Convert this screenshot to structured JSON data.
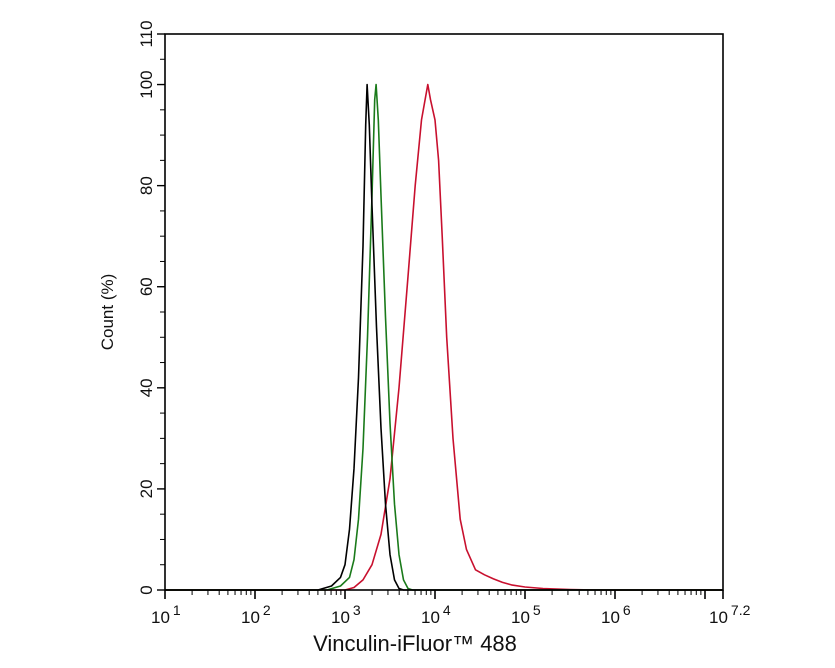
{
  "chart_data": {
    "type": "line",
    "title": "",
    "xlabel": "Vinculin-iFluor™ 488",
    "ylabel": "Count  (%)",
    "xscale": "log",
    "xlim_log10": [
      1,
      7.2
    ],
    "ylim": [
      0,
      110
    ],
    "grid": false,
    "legend": "none",
    "x_tick_labels": [
      {
        "base": "10",
        "exp": "1",
        "log10": 1
      },
      {
        "base": "10",
        "exp": "2",
        "log10": 2
      },
      {
        "base": "10",
        "exp": "3",
        "log10": 3
      },
      {
        "base": "10",
        "exp": "4",
        "log10": 4
      },
      {
        "base": "10",
        "exp": "5",
        "log10": 5
      },
      {
        "base": "10",
        "exp": "6",
        "log10": 6
      },
      {
        "base": "10",
        "exp": "7.2",
        "log10": 7.2
      }
    ],
    "y_tick_labels": [
      "0",
      "20",
      "40",
      "60",
      "80",
      "100",
      "110"
    ],
    "y_ticks": [
      0,
      20,
      40,
      60,
      80,
      100,
      110
    ],
    "series": [
      {
        "name": "black",
        "color": "#000000",
        "peak_x": 1700,
        "points_log10": [
          [
            2.7,
            0
          ],
          [
            2.85,
            0.8
          ],
          [
            2.95,
            2.5
          ],
          [
            3.0,
            5
          ],
          [
            3.05,
            12
          ],
          [
            3.1,
            24
          ],
          [
            3.15,
            42
          ],
          [
            3.2,
            68
          ],
          [
            3.23,
            92
          ],
          [
            3.245,
            100
          ],
          [
            3.27,
            92
          ],
          [
            3.3,
            76
          ],
          [
            3.35,
            52
          ],
          [
            3.4,
            32
          ],
          [
            3.45,
            17
          ],
          [
            3.5,
            7
          ],
          [
            3.55,
            2
          ],
          [
            3.6,
            0.3
          ],
          [
            3.65,
            0
          ]
        ]
      },
      {
        "name": "green",
        "color": "#1a7a1a",
        "peak_x": 2150,
        "points_log10": [
          [
            2.8,
            0
          ],
          [
            2.95,
            0.8
          ],
          [
            3.05,
            2.5
          ],
          [
            3.1,
            6
          ],
          [
            3.15,
            14
          ],
          [
            3.2,
            28
          ],
          [
            3.25,
            50
          ],
          [
            3.3,
            78
          ],
          [
            3.33,
            97
          ],
          [
            3.345,
            100
          ],
          [
            3.37,
            93
          ],
          [
            3.4,
            78
          ],
          [
            3.45,
            54
          ],
          [
            3.5,
            33
          ],
          [
            3.55,
            17
          ],
          [
            3.6,
            7
          ],
          [
            3.65,
            2
          ],
          [
            3.7,
            0.3
          ],
          [
            3.75,
            0
          ]
        ]
      },
      {
        "name": "red",
        "color": "#c8102e",
        "peak_x": 8300,
        "points_log10": [
          [
            3.0,
            0
          ],
          [
            3.1,
            0.5
          ],
          [
            3.2,
            2
          ],
          [
            3.3,
            5
          ],
          [
            3.4,
            11
          ],
          [
            3.5,
            22
          ],
          [
            3.6,
            40
          ],
          [
            3.7,
            62
          ],
          [
            3.78,
            80
          ],
          [
            3.85,
            93
          ],
          [
            3.92,
            100
          ],
          [
            3.95,
            97
          ],
          [
            4.0,
            93
          ],
          [
            4.04,
            85
          ],
          [
            4.08,
            70
          ],
          [
            4.13,
            50
          ],
          [
            4.2,
            30
          ],
          [
            4.28,
            14
          ],
          [
            4.35,
            8
          ],
          [
            4.45,
            4
          ],
          [
            4.55,
            3
          ],
          [
            4.65,
            2.2
          ],
          [
            4.75,
            1.5
          ],
          [
            4.85,
            1
          ],
          [
            5.0,
            0.6
          ],
          [
            5.2,
            0.3
          ],
          [
            5.5,
            0.1
          ],
          [
            5.8,
            0
          ]
        ]
      }
    ]
  }
}
